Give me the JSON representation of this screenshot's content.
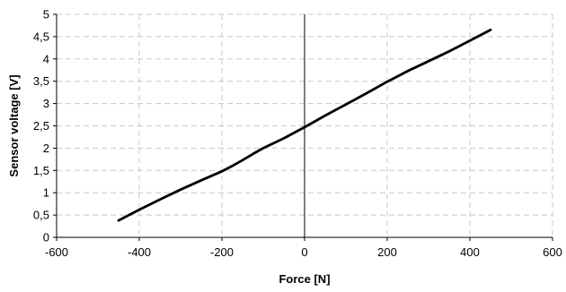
{
  "chart_data": {
    "type": "line",
    "title": "",
    "xlabel": "Force [N]",
    "ylabel": "Sensor voltage [V]",
    "xlim": [
      -600,
      600
    ],
    "ylim": [
      0,
      5
    ],
    "x_ticks": [
      -600,
      -400,
      -200,
      0,
      200,
      400,
      600
    ],
    "x_tick_labels": [
      "-600",
      "-400",
      "-200",
      "0",
      "200",
      "400",
      "600"
    ],
    "y_ticks": [
      0,
      0.5,
      1,
      1.5,
      2,
      2.5,
      3,
      3.5,
      4,
      4.5,
      5
    ],
    "y_tick_labels": [
      "0",
      "0,5",
      "1",
      "1,5",
      "2",
      "2,5",
      "3",
      "3,5",
      "4",
      "4,5",
      "5"
    ],
    "grid": true,
    "legend": "none",
    "line_color": "#000000",
    "series": [
      {
        "x": [
          -450,
          -400,
          -350,
          -300,
          -250,
          -200,
          -175,
          -150,
          -125,
          -100,
          -50,
          0,
          50,
          100,
          150,
          200,
          250,
          300,
          350,
          400,
          450
        ],
        "y": [
          0.38,
          0.62,
          0.85,
          1.07,
          1.28,
          1.48,
          1.6,
          1.73,
          1.87,
          2.0,
          2.22,
          2.47,
          2.73,
          2.98,
          3.23,
          3.49,
          3.73,
          3.95,
          4.17,
          4.41,
          4.65
        ]
      }
    ]
  }
}
